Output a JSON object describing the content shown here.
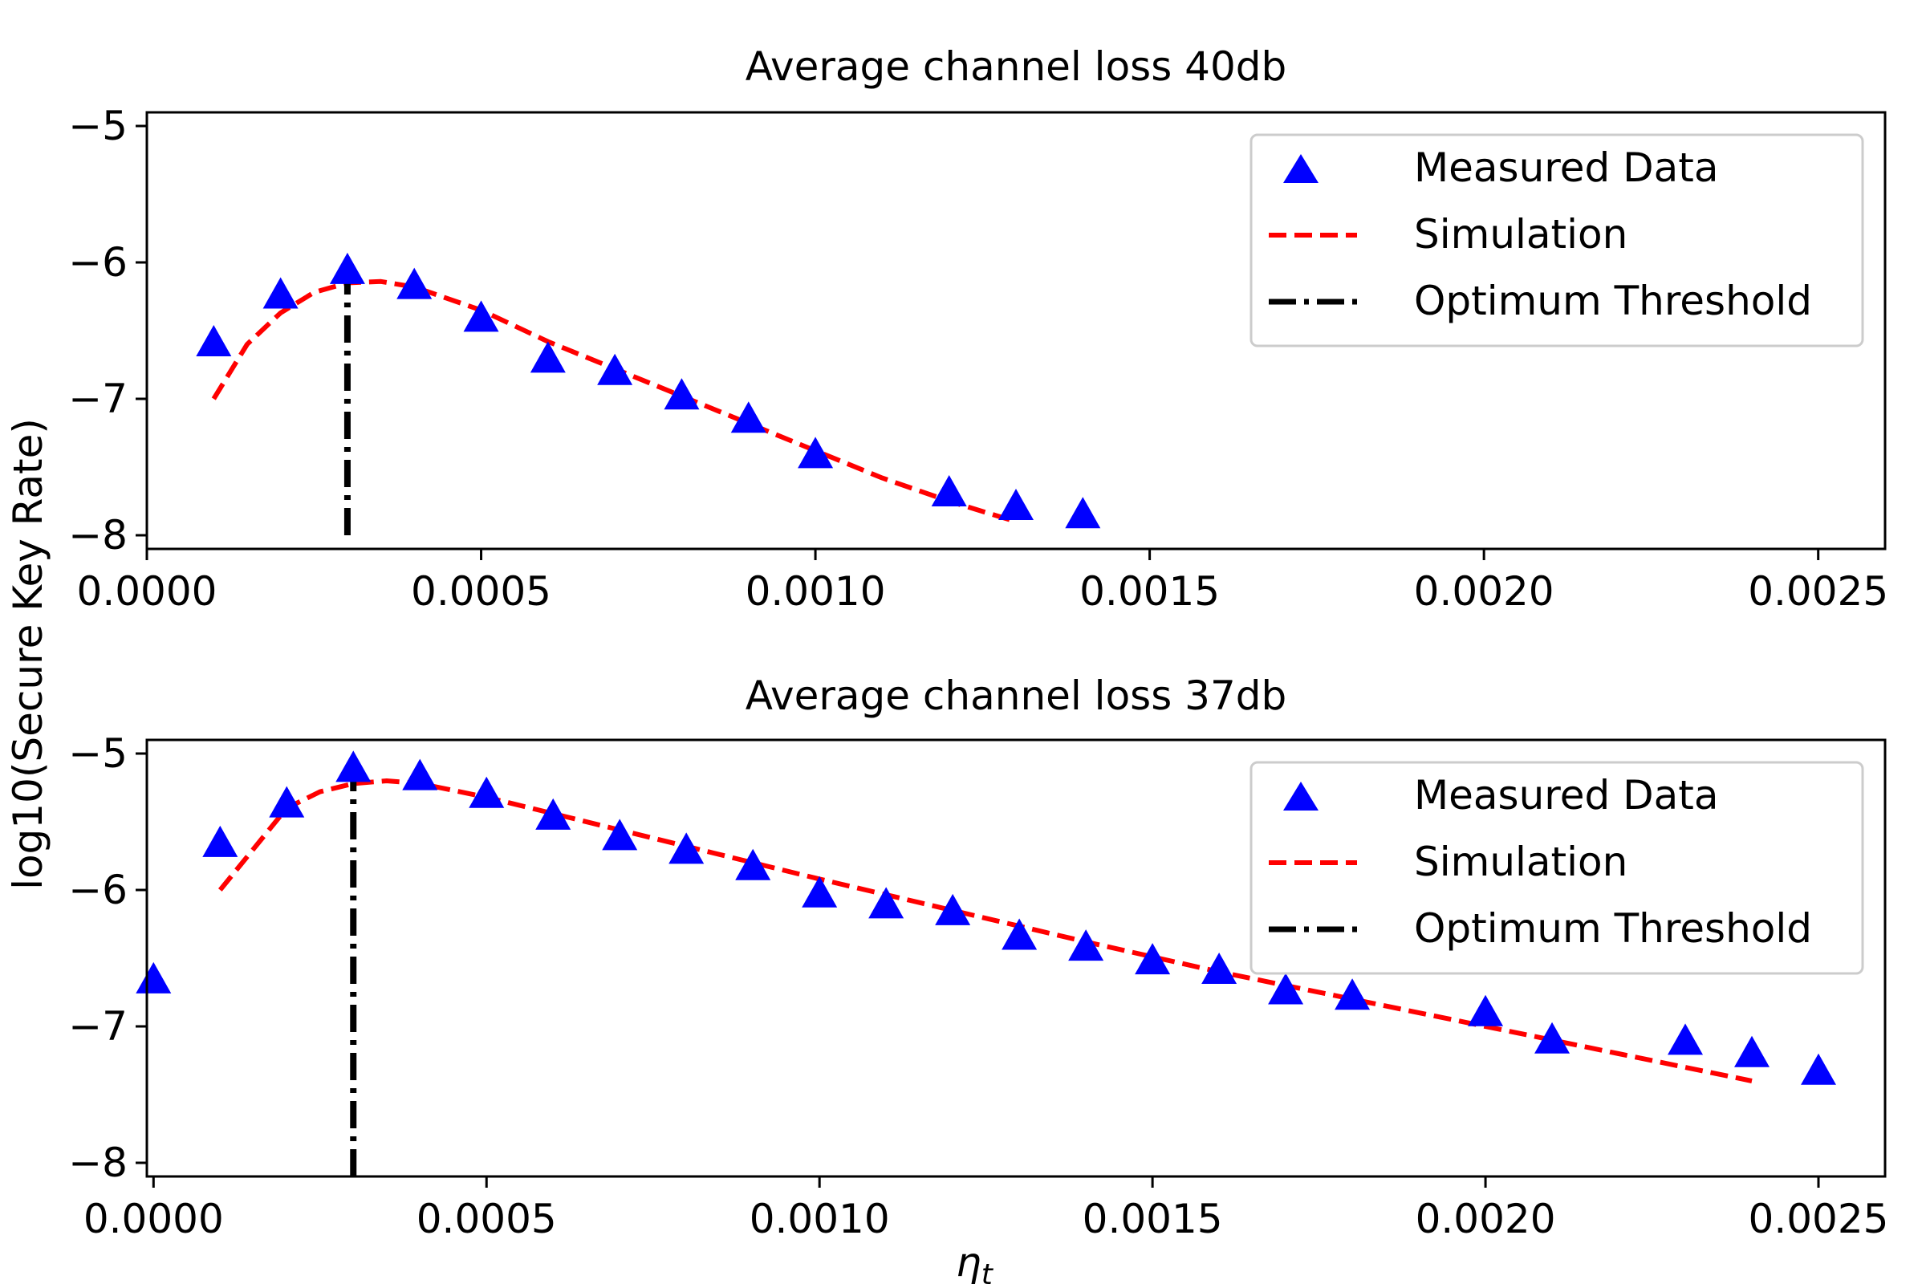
{
  "figure": {
    "ylabel": "log10(Secure Key Rate)",
    "xlabel_main": "η",
    "xlabel_sub": "t"
  },
  "chart_data": [
    {
      "type": "line",
      "title": "Average channel loss 40db",
      "xlim": [
        0.0,
        0.0026
      ],
      "ylim": [
        -8.1,
        -4.9
      ],
      "xticks": [
        0.0,
        0.0005,
        0.001,
        0.0015,
        0.002,
        0.0025
      ],
      "xtick_labels": [
        "0.0000",
        "0.0005",
        "0.0010",
        "0.0015",
        "0.0020",
        "0.0025"
      ],
      "yticks": [
        -8,
        -7,
        -6,
        -5
      ],
      "ytick_labels": [
        "−8",
        "−7",
        "−6",
        "−5"
      ],
      "legend_position": "top-right",
      "legend": [
        "Measured Data",
        "Simulation",
        "Optimum Threshold"
      ],
      "series": [
        {
          "name": "Measured Data",
          "kind": "scatter",
          "marker": "triangle",
          "color": "#0000ff",
          "x": [
            0.0001,
            0.0002,
            0.0003,
            0.0004,
            0.0005,
            0.0006,
            0.0007,
            0.0008,
            0.0009,
            0.001,
            0.0012,
            0.0013,
            0.0014
          ],
          "y": [
            -6.6,
            -6.25,
            -6.07,
            -6.18,
            -6.42,
            -6.72,
            -6.81,
            -6.99,
            -7.16,
            -7.42,
            -7.7,
            -7.8,
            -7.86
          ]
        },
        {
          "name": "Simulation",
          "kind": "line",
          "style": "dashed",
          "color": "#ff0000",
          "x": [
            0.0001,
            0.00015,
            0.0002,
            0.00025,
            0.0003,
            0.00035,
            0.0004,
            0.0005,
            0.0006,
            0.0007,
            0.0008,
            0.0009,
            0.001,
            0.0011,
            0.0012,
            0.0013
          ],
          "y": [
            -7.0,
            -6.6,
            -6.37,
            -6.22,
            -6.15,
            -6.14,
            -6.18,
            -6.35,
            -6.58,
            -6.78,
            -6.98,
            -7.18,
            -7.38,
            -7.58,
            -7.75,
            -7.9
          ]
        },
        {
          "name": "Optimum Threshold",
          "kind": "vline",
          "style": "dashdot",
          "color": "#000000",
          "x": 0.0003,
          "y_range": [
            -8.0,
            -6.05
          ]
        }
      ]
    },
    {
      "type": "line",
      "title": "Average channel loss 37db",
      "xlim": [
        -1e-05,
        0.0026
      ],
      "ylim": [
        -8.1,
        -4.9
      ],
      "xticks": [
        0.0,
        0.0005,
        0.001,
        0.0015,
        0.002,
        0.0025
      ],
      "xtick_labels": [
        "0.0000",
        "0.0005",
        "0.0010",
        "0.0015",
        "0.0020",
        "0.0025"
      ],
      "yticks": [
        -8,
        -7,
        -6,
        -5
      ],
      "ytick_labels": [
        "−8",
        "−7",
        "−6",
        "−5"
      ],
      "legend_position": "top-right",
      "legend": [
        "Measured Data",
        "Simulation",
        "Optimum Threshold"
      ],
      "series": [
        {
          "name": "Measured Data",
          "kind": "scatter",
          "marker": "triangle",
          "color": "#0000ff",
          "x": [
            0.0,
            0.0001,
            0.0002,
            0.0003,
            0.0004,
            0.0005,
            0.0006,
            0.0007,
            0.0008,
            0.0009,
            0.001,
            0.0011,
            0.0012,
            0.0013,
            0.0014,
            0.0015,
            0.0016,
            0.0017,
            0.0018,
            0.002,
            0.0021,
            0.0023,
            0.0024,
            0.0025
          ],
          "y": [
            -6.67,
            -5.67,
            -5.38,
            -5.12,
            -5.18,
            -5.31,
            -5.47,
            -5.62,
            -5.72,
            -5.84,
            -6.04,
            -6.12,
            -6.17,
            -6.35,
            -6.43,
            -6.53,
            -6.6,
            -6.75,
            -6.79,
            -6.91,
            -7.11,
            -7.12,
            -7.21,
            -7.34
          ]
        },
        {
          "name": "Simulation",
          "kind": "line",
          "style": "dashed",
          "color": "#ff0000",
          "x": [
            0.0001,
            0.00015,
            0.0002,
            0.00025,
            0.0003,
            0.00035,
            0.0004,
            0.0005,
            0.0006,
            0.0008,
            0.001,
            0.0012,
            0.0014,
            0.0016,
            0.0018,
            0.002,
            0.0022,
            0.0024
          ],
          "y": [
            -6.0,
            -5.7,
            -5.4,
            -5.28,
            -5.22,
            -5.2,
            -5.22,
            -5.32,
            -5.44,
            -5.68,
            -5.92,
            -6.15,
            -6.38,
            -6.6,
            -6.8,
            -7.0,
            -7.2,
            -7.4
          ]
        },
        {
          "name": "Optimum Threshold",
          "kind": "vline",
          "style": "dashdot",
          "color": "#000000",
          "x": 0.0003,
          "y_range": [
            -8.1,
            -5.2
          ]
        }
      ]
    }
  ]
}
